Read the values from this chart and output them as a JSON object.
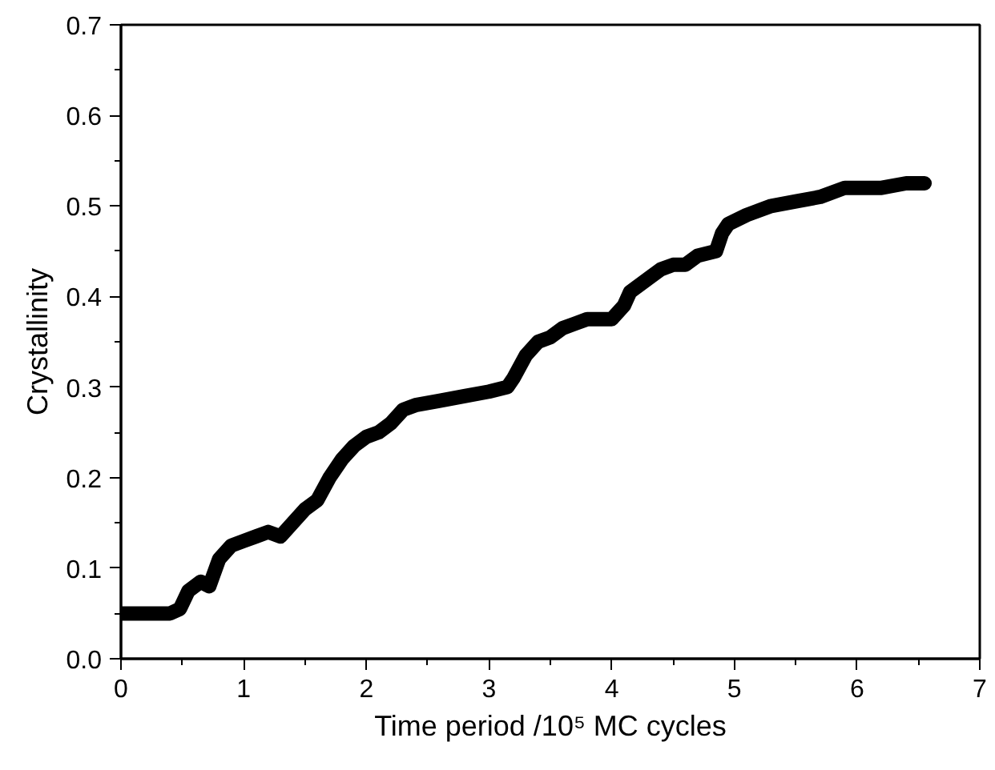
{
  "chart_data": {
    "type": "line",
    "xlabel": "Time period /10⁵ MC cycles",
    "ylabel": "Crystallinity",
    "xlim": [
      0,
      7
    ],
    "ylim": [
      0,
      0.7
    ],
    "xticks": [
      0,
      1,
      2,
      3,
      4,
      5,
      6,
      7
    ],
    "yticks": [
      {
        "value": 0,
        "label": "0.0"
      },
      {
        "value": 0.1,
        "label": "0.1"
      },
      {
        "value": 0.2,
        "label": "0.2"
      },
      {
        "value": 0.3,
        "label": "0.3"
      },
      {
        "value": 0.4,
        "label": "0.4"
      },
      {
        "value": 0.5,
        "label": "0.5"
      },
      {
        "value": 0.6,
        "label": "0.6"
      },
      {
        "value": 0.7,
        "label": "0.7"
      }
    ],
    "grid": false,
    "series": [
      {
        "color": "#000000",
        "x": [
          0,
          0.2,
          0.4,
          0.48,
          0.55,
          0.65,
          0.72,
          0.8,
          0.9,
          1.0,
          1.1,
          1.2,
          1.3,
          1.4,
          1.5,
          1.6,
          1.7,
          1.8,
          1.9,
          2.0,
          2.1,
          2.2,
          2.3,
          2.4,
          2.6,
          2.8,
          3.0,
          3.15,
          3.2,
          3.3,
          3.4,
          3.5,
          3.6,
          3.7,
          3.8,
          4.0,
          4.1,
          4.15,
          4.3,
          4.4,
          4.5,
          4.6,
          4.7,
          4.85,
          4.9,
          4.95,
          5.1,
          5.3,
          5.5,
          5.7,
          5.9,
          6.0,
          6.2,
          6.4,
          6.55
        ],
        "values": [
          0.05,
          0.05,
          0.05,
          0.055,
          0.075,
          0.085,
          0.08,
          0.11,
          0.125,
          0.13,
          0.135,
          0.14,
          0.135,
          0.15,
          0.165,
          0.175,
          0.2,
          0.22,
          0.235,
          0.245,
          0.25,
          0.26,
          0.275,
          0.28,
          0.285,
          0.29,
          0.295,
          0.3,
          0.31,
          0.335,
          0.35,
          0.355,
          0.365,
          0.37,
          0.375,
          0.375,
          0.39,
          0.405,
          0.42,
          0.43,
          0.435,
          0.435,
          0.445,
          0.45,
          0.47,
          0.48,
          0.49,
          0.5,
          0.505,
          0.51,
          0.52,
          0.52,
          0.52,
          0.525,
          0.525
        ]
      }
    ]
  }
}
